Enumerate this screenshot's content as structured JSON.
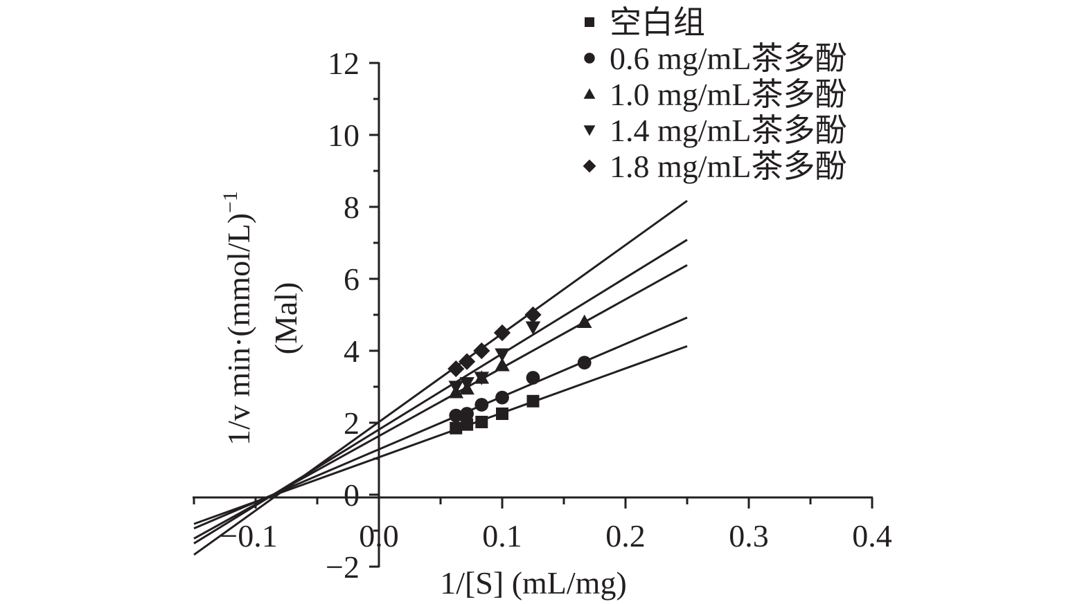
{
  "chart_data": {
    "type": "scatter",
    "title": "",
    "xlabel": "1/[S] (mL/mg)",
    "ylabel_line1": "1/v min·(mmol/L)",
    "ylabel_sup": "−1",
    "ylabel_line2": "(Mal)",
    "xlim": [
      -0.15,
      0.4
    ],
    "ylim": [
      -2,
      12
    ],
    "xticks": [
      -0.1,
      0.0,
      0.1,
      0.2,
      0.3,
      0.4
    ],
    "xtick_labels": [
      "−0.1",
      "0.0",
      "0.1",
      "0.2",
      "0.3",
      "0.4"
    ],
    "yticks": [
      -2,
      0,
      2,
      4,
      6,
      8,
      10,
      12
    ],
    "ytick_labels": [
      "−2",
      "0",
      "2",
      "4",
      "6",
      "8",
      "10",
      "12"
    ],
    "grid": false,
    "legend_position": "top-right",
    "fit_line_range": [
      -0.15,
      0.25
    ],
    "series": [
      {
        "name": "空白组",
        "marker": "square",
        "x": [
          0.0625,
          0.0714,
          0.0833,
          0.1,
          0.125
        ],
        "y": [
          1.85,
          1.95,
          2.02,
          2.25,
          2.6
        ],
        "fit": {
          "slope": 12.35,
          "intercept": 1.04
        }
      },
      {
        "name": "0.6 mg/mL茶多酚",
        "marker": "circle",
        "x": [
          0.0625,
          0.0714,
          0.0833,
          0.1,
          0.125,
          0.1667
        ],
        "y": [
          2.2,
          2.25,
          2.5,
          2.7,
          3.25,
          3.67
        ],
        "fit": {
          "slope": 14.65,
          "intercept": 1.26
        }
      },
      {
        "name": "1.0 mg/mL茶多酚",
        "marker": "triangle-up",
        "x": [
          0.0625,
          0.0714,
          0.0833,
          0.1,
          0.1667
        ],
        "y": [
          2.85,
          2.95,
          3.25,
          3.6,
          4.8
        ],
        "fit": {
          "slope": 19.0,
          "intercept": 1.63
        }
      },
      {
        "name": "1.4 mg/mL茶多酚",
        "marker": "triangle-down",
        "x": [
          0.0625,
          0.0714,
          0.0833,
          0.1,
          0.125
        ],
        "y": [
          3.0,
          3.1,
          3.25,
          3.9,
          4.65
        ],
        "fit": {
          "slope": 21.1,
          "intercept": 1.81
        }
      },
      {
        "name": "1.8 mg/mL茶多酚",
        "marker": "diamond",
        "x": [
          0.0625,
          0.0714,
          0.0833,
          0.1,
          0.125
        ],
        "y": [
          3.5,
          3.7,
          4.0,
          4.5,
          5.0
        ],
        "fit": {
          "slope": 24.6,
          "intercept": 2.02
        }
      }
    ],
    "colors": {
      "ink": "#231f20",
      "background": "#ffffff"
    }
  }
}
